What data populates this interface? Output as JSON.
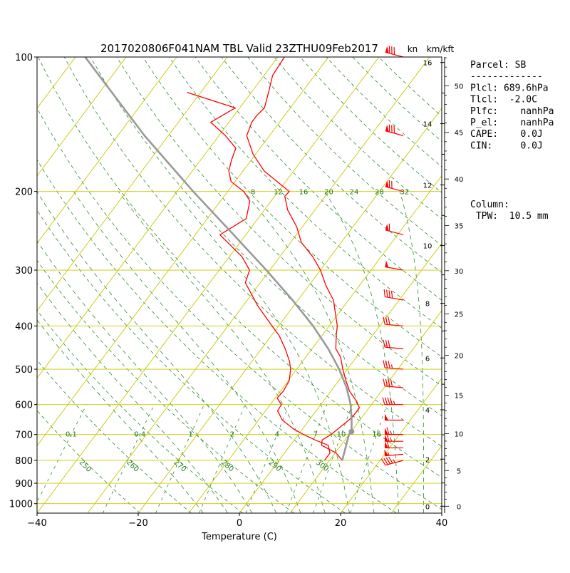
{
  "chart_data": {
    "type": "line",
    "title": "2017020806F041NAM TBL Valid 23ZTHU09Feb2017",
    "xlabel": "Temperature (C)",
    "ylabel": "",
    "x_scale": "skew-T",
    "y_scale": "log-pressure",
    "xlim": [
      -40,
      40
    ],
    "ylim": [
      1050,
      100
    ],
    "x_ticks": [
      -40,
      -20,
      0,
      20,
      40
    ],
    "x_tick_labels": [
      "−40",
      "−20",
      "0",
      "20",
      "40"
    ],
    "pressure_ticks": [
      100,
      200,
      300,
      400,
      500,
      600,
      700,
      800,
      900,
      1000
    ],
    "isobars_hpa": [
      100,
      200,
      300,
      400,
      500,
      600,
      700,
      800,
      900,
      1000
    ],
    "isotherms_c": [
      -120,
      -110,
      -100,
      -90,
      -80,
      -70,
      -60,
      -50,
      -40,
      -30,
      -20,
      -10,
      0,
      10,
      20,
      30,
      40
    ],
    "dry_adiabats_k": [
      250,
      260,
      270,
      280,
      290,
      300,
      310,
      320,
      330,
      340,
      350,
      360,
      370,
      380,
      390,
      400,
      410,
      420,
      430,
      440,
      450
    ],
    "dry_adiabat_labels": [
      "250",
      "260",
      "270",
      "280",
      "290",
      "300"
    ],
    "moist_adiabats_c": [
      -10,
      -5,
      0,
      5,
      10,
      15,
      20,
      25,
      30,
      35
    ],
    "mixing_ratio_lines": [
      0.1,
      0.4,
      1,
      2,
      4,
      7,
      10,
      16
    ],
    "mixing_ratio_labels": [
      "0.1",
      "0.4",
      "1",
      "2",
      "4",
      "7",
      "10",
      "16"
    ],
    "isotherm_labels_200hpa": [
      "8",
      "12",
      "16",
      "20",
      "24",
      "28",
      "32"
    ],
    "right_axis_unit_left": "kn",
    "right_axis_unit_right": "km/kft",
    "height_km_ticks": [
      0,
      2,
      4,
      6,
      8,
      10,
      12,
      14,
      16
    ],
    "height_kft_ticks": [
      0,
      5,
      10,
      15,
      20,
      25,
      30,
      35,
      40,
      45,
      50
    ],
    "series": [
      {
        "name": "Temperature",
        "color": "#ff0000",
        "pressure": [
          800,
          770,
          740,
          720,
          700,
          680,
          640,
          610,
          590,
          560,
          530,
          500,
          470,
          450,
          420,
          400,
          350,
          325,
          300,
          280,
          260,
          240,
          220,
          205,
          200,
          180,
          165,
          150,
          140,
          135,
          130,
          120,
          110,
          100
        ],
        "values": [
          12.5,
          10.2,
          6.2,
          5.5,
          6.5,
          7.0,
          8.1,
          8.1,
          6.6,
          3.7,
          1.4,
          -0.9,
          -3.1,
          -5.3,
          -7.2,
          -8.4,
          -13.0,
          -16.6,
          -20.0,
          -23.5,
          -27.9,
          -31.1,
          -35.4,
          -38.0,
          -37.8,
          -45.8,
          -50.5,
          -54.5,
          -55.5,
          -55.5,
          -55.1,
          -56.6,
          -58.3,
          -58.7
        ]
      },
      {
        "name": "Dewpoint",
        "color": "#ff0000",
        "pressure": [
          800,
          770,
          740,
          720,
          700,
          680,
          650,
          620,
          600,
          580,
          560,
          530,
          500,
          480,
          450,
          420,
          400,
          360,
          320,
          300,
          280,
          250,
          230,
          210,
          200,
          190,
          180,
          170,
          160,
          150,
          140,
          130,
          120
        ],
        "values": [
          9.0,
          9.0,
          7.5,
          4.1,
          1.0,
          -1.8,
          -5.3,
          -7.6,
          -7.8,
          -9.6,
          -9.4,
          -9.8,
          -11.2,
          -12.6,
          -15.3,
          -18.5,
          -21.3,
          -27.2,
          -33.0,
          -34.0,
          -37.5,
          -45.1,
          -42.3,
          -44.2,
          -46.8,
          -50.8,
          -52.8,
          -53.9,
          -54.8,
          -58.7,
          -63.6,
          -60.9,
          -72.7
        ]
      },
      {
        "name": "Parcel",
        "color": "#999999",
        "pressure": [
          800,
          750,
          700,
          690,
          650,
          600,
          550,
          500,
          450,
          400,
          350,
          300,
          250,
          200,
          150,
          100
        ],
        "values": [
          12.5,
          11.3,
          10.0,
          10.1,
          8.4,
          5.9,
          2.6,
          -1.6,
          -6.8,
          -13.2,
          -21.1,
          -30.7,
          -42.4,
          -56.8,
          -74.7,
          -98.1
        ]
      }
    ],
    "wind_barbs": {
      "color": "#ff0000",
      "pressure": [
        800,
        775,
        750,
        725,
        700,
        650,
        600,
        550,
        500,
        450,
        400,
        350,
        300,
        250,
        200,
        150,
        100
      ],
      "speed_kn": [
        45,
        55,
        60,
        65,
        65,
        50,
        45,
        40,
        35,
        30,
        30,
        40,
        50,
        60,
        70,
        80,
        80
      ],
      "direction_deg": [
        255,
        265,
        270,
        270,
        270,
        270,
        270,
        275,
        275,
        275,
        275,
        280,
        280,
        285,
        285,
        285,
        285
      ]
    }
  },
  "info_panel": {
    "parcel_lines": [
      "Parcel: SB",
      "-------------",
      "Plcl: 689.6hPa",
      "Tlcl:  -2.0C",
      "Plfc:    nanhPa",
      "P_el:    nanhPa",
      "CAPE:    0.0J",
      "CIN:     0.0J"
    ],
    "column_lines": [
      "Column:",
      " TPW:  10.5 mm"
    ]
  }
}
